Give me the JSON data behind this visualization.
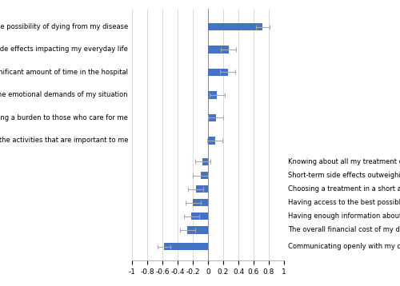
{
  "categories_left": [
    "The possibility of dying from my disease",
    "Long-term side effects impacting my everyday life",
    "Spending a significant amount of time in the hospital",
    "Coping with the emotional demands of my situation",
    "Becoming a burden to those who care for me",
    "Returning to the activities that are important to me"
  ],
  "categories_right": [
    "Knowing about all my treatment options",
    "Short-term side effects outweighing the benefits",
    "Choosing a treatment in a short amount of time",
    "Having access to the best possible medical care",
    "Having enough information about my disease",
    "The overall financial cost of my disease",
    "Communicating openly with my doctors"
  ],
  "values_left": [
    0.72,
    0.27,
    0.26,
    0.12,
    0.1,
    0.09
  ],
  "errors_left": [
    0.09,
    0.1,
    0.1,
    0.1,
    0.1,
    0.1
  ],
  "values_right": [
    -0.07,
    -0.1,
    -0.16,
    -0.2,
    -0.22,
    -0.27,
    -0.58
  ],
  "errors_right": [
    0.1,
    0.1,
    0.1,
    0.1,
    0.1,
    0.1,
    0.08
  ],
  "bar_color": "#4472C4",
  "error_color": "#aaaaaa",
  "background_color": "#ffffff",
  "xlim": [
    -1.0,
    1.0
  ],
  "xticks": [
    -1.0,
    -0.8,
    -0.6,
    -0.4,
    -0.2,
    0.0,
    0.2,
    0.4,
    0.6,
    0.8,
    1.0
  ],
  "xtick_labels": [
    "-1",
    "-0.8",
    "-0.6",
    "-0.4",
    "-0.2",
    "0",
    "0.2",
    "0.4",
    "0.6",
    "0.8",
    "1"
  ],
  "label_fontsize": 6.0,
  "tick_fontsize": 6.5,
  "bar_height": 0.5,
  "left_y": [
    12.0,
    10.5,
    9.0,
    7.5,
    6.0,
    4.5
  ],
  "right_y": [
    3.1,
    2.2,
    1.3,
    0.4,
    -0.5,
    -1.4,
    -2.5
  ],
  "ylim": [
    -3.4,
    13.2
  ]
}
